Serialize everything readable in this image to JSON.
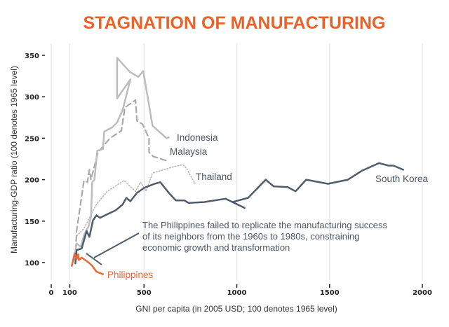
{
  "chart_data": {
    "type": "line",
    "title": "STAGNATION OF MANUFACTURING",
    "xlabel": "GNI per capita (in 2005 USD; 100 denotes 1965 level)",
    "ylabel": "Manufacturing-GDP ratio (100 denotes 1965 level)",
    "xlim": [
      0,
      2000
    ],
    "ylim": [
      100,
      350
    ],
    "xticks": [
      "0",
      "100",
      "500",
      "1000",
      "1500",
      "2000"
    ],
    "xtick_values": [
      0,
      100,
      500,
      1000,
      1500,
      2000
    ],
    "yticks": [
      "100",
      "150",
      "200",
      "250",
      "300",
      "350"
    ],
    "ytick_values": [
      100,
      150,
      200,
      250,
      300,
      350
    ],
    "grid": "vertical",
    "annotation": {
      "lines": [
        "The Philippines failed to replicate the manufacturing success",
        "of its neighbors from the 1960s to 1980s, constraining",
        "economic growth and transformation"
      ],
      "points_to": [
        150,
        100
      ]
    },
    "series": [
      {
        "name": "South Korea",
        "color": "#4f5d6a",
        "style": "solid",
        "points": [
          [
            130,
            99
          ],
          [
            137,
            115
          ],
          [
            164,
            117
          ],
          [
            191,
            138
          ],
          [
            206,
            131
          ],
          [
            225,
            151
          ],
          [
            244,
            157
          ],
          [
            263,
            154
          ],
          [
            309,
            159
          ],
          [
            347,
            163
          ],
          [
            385,
            170
          ],
          [
            405,
            178
          ],
          [
            427,
            174
          ],
          [
            462,
            184
          ],
          [
            500,
            190
          ],
          [
            557,
            195
          ],
          [
            588,
            197
          ],
          [
            634,
            184
          ],
          [
            672,
            175
          ],
          [
            718,
            175
          ],
          [
            740,
            172
          ],
          [
            824,
            173
          ],
          [
            939,
            177
          ],
          [
            1042,
            166
          ],
          [
            977,
            173
          ],
          [
            1061,
            178
          ],
          [
            1156,
            200
          ],
          [
            1198,
            192
          ],
          [
            1275,
            191
          ],
          [
            1317,
            186
          ],
          [
            1374,
            200
          ],
          [
            1492,
            195
          ],
          [
            1599,
            200
          ],
          [
            1676,
            211
          ],
          [
            1767,
            220
          ],
          [
            1817,
            217
          ],
          [
            1844,
            217
          ],
          [
            1897,
            212
          ]
        ]
      },
      {
        "name": "Indonesia",
        "color": "#bdbdbd",
        "style": "solid",
        "points": [
          [
            122,
            103
          ],
          [
            137,
            123
          ],
          [
            160,
            119
          ],
          [
            176,
            133
          ],
          [
            202,
            144
          ],
          [
            214,
            155
          ],
          [
            221,
            197
          ],
          [
            233,
            200
          ],
          [
            248,
            235
          ],
          [
            279,
            237
          ],
          [
            286,
            258
          ],
          [
            328,
            263
          ],
          [
            355,
            269
          ],
          [
            385,
            284
          ],
          [
            427,
            321
          ],
          [
            355,
            298
          ],
          [
            355,
            347
          ],
          [
            424,
            330
          ],
          [
            469,
            324
          ],
          [
            496,
            331
          ],
          [
            546,
            265
          ],
          [
            622,
            250
          ],
          [
            634,
            251
          ]
        ]
      },
      {
        "name": "Malaysia",
        "color": "#aaaaaa",
        "style": "dashed",
        "points": [
          [
            130,
            104
          ],
          [
            137,
            138
          ],
          [
            176,
            199
          ],
          [
            195,
            197
          ],
          [
            206,
            212
          ],
          [
            214,
            200
          ],
          [
            252,
            233
          ],
          [
            317,
            250
          ],
          [
            378,
            259
          ],
          [
            397,
            287
          ],
          [
            454,
            296
          ],
          [
            462,
            271
          ],
          [
            492,
            267
          ],
          [
            527,
            250
          ],
          [
            527,
            233
          ],
          [
            550,
            228
          ],
          [
            634,
            222
          ]
        ]
      },
      {
        "name": "Thailand",
        "color": "#b8b8b8",
        "style": "dotted",
        "points": [
          [
            137,
            132
          ],
          [
            176,
            141
          ],
          [
            240,
            169
          ],
          [
            302,
            186
          ],
          [
            393,
            199
          ],
          [
            454,
            186
          ],
          [
            481,
            197
          ],
          [
            511,
            186
          ],
          [
            546,
            208
          ],
          [
            607,
            212
          ],
          [
            664,
            216
          ],
          [
            710,
            218
          ],
          [
            729,
            214
          ],
          [
            775,
            195
          ]
        ]
      },
      {
        "name": "Philippines",
        "color": "#e8683a",
        "style": "solid",
        "points": [
          [
            111,
            96
          ],
          [
            126,
            111
          ],
          [
            137,
            104
          ],
          [
            145,
            110
          ],
          [
            149,
            103
          ],
          [
            164,
            106
          ],
          [
            183,
            103
          ],
          [
            202,
            100
          ],
          [
            221,
            96
          ],
          [
            244,
            89
          ],
          [
            279,
            86
          ]
        ]
      }
    ]
  },
  "colors": {
    "title": "#e8622a",
    "label_text": "#4a5663",
    "grid": "#e5e9ee"
  }
}
